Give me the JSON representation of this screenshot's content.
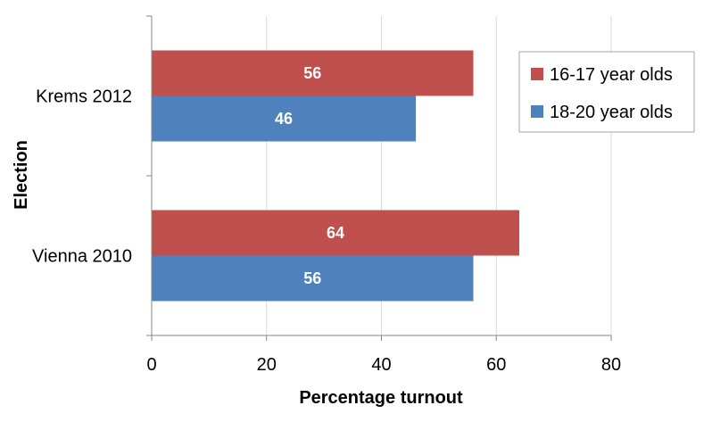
{
  "chart_data": {
    "type": "bar",
    "orientation": "horizontal",
    "categories": [
      "Krems 2012",
      "Vienna 2010"
    ],
    "series": [
      {
        "name": "16-17 year olds",
        "values": [
          56,
          64
        ],
        "color": "#c0504d"
      },
      {
        "name": "18-20 year olds",
        "values": [
          46,
          56
        ],
        "color": "#4f81bd"
      }
    ],
    "xlabel": "Percentage turnout",
    "ylabel": "Election",
    "xlim": [
      0,
      80
    ],
    "xticks": [
      0,
      20,
      40,
      60,
      80
    ],
    "grid": true,
    "legend_position": "top-right",
    "data_labels": true
  }
}
